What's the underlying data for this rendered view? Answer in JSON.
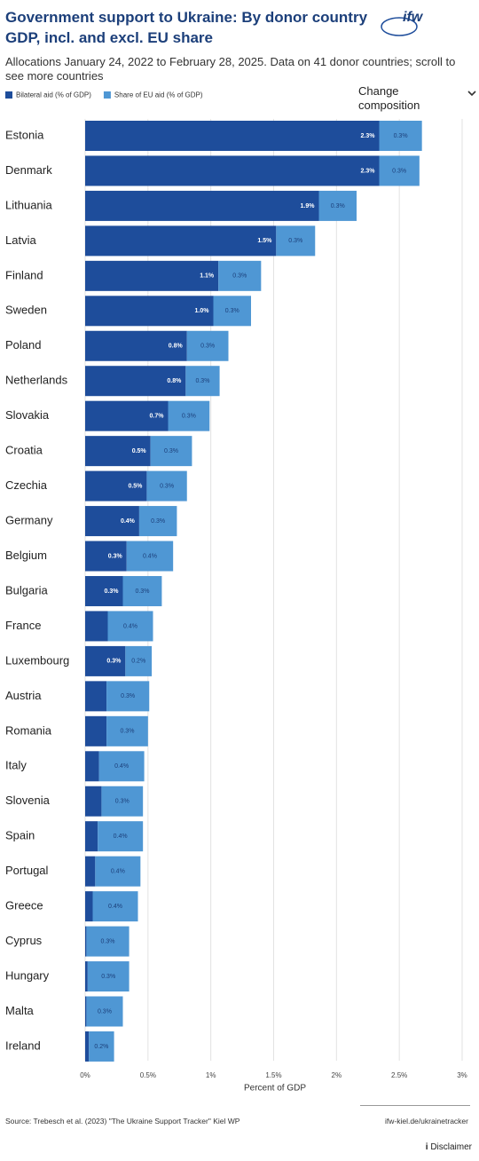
{
  "logo": "ifw",
  "controls": {
    "change_composition": "Change composition"
  },
  "footer": {
    "source": "Source: Trebesch et al. (2023) \"The Ukraine Support Tracker\" Kiel WP",
    "link": "ifw-kiel.de/ukrainetracker",
    "disclaimer": "Disclaimer"
  },
  "chart_data": {
    "type": "stacked-barh",
    "title": "Government support to Ukraine: By donor country GDP, incl. and excl. EU share",
    "subtitle": "Allocations January 24, 2022 to February 28, 2025. Data on 41 donor countries; scroll to see more countries",
    "xlabel": "Percent of GDP",
    "categories": [
      "Estonia",
      "Denmark",
      "Lithuania",
      "Latvia",
      "Finland",
      "Sweden",
      "Poland",
      "Netherlands",
      "Slovakia",
      "Croatia",
      "Czechia",
      "Germany",
      "Belgium",
      "Bulgaria",
      "France",
      "Luxembourg",
      "Austria",
      "Romania",
      "Italy",
      "Slovenia",
      "Spain",
      "Portugal",
      "Greece",
      "Cyprus",
      "Hungary",
      "Malta",
      "Ireland"
    ],
    "series": [
      {
        "name": "Bilateral aid (% of GDP)",
        "color": "#1e4d9b",
        "values": [
          2.34,
          2.34,
          1.86,
          1.52,
          1.06,
          1.02,
          0.81,
          0.8,
          0.66,
          0.52,
          0.49,
          0.43,
          0.33,
          0.3,
          0.18,
          0.32,
          0.17,
          0.17,
          0.11,
          0.13,
          0.1,
          0.08,
          0.06,
          0.01,
          0.02,
          0.01,
          0.03
        ],
        "value_labels": [
          "2.3%",
          "2.3%",
          "1.9%",
          "1.5%",
          "1.1%",
          "1.0%",
          "0.8%",
          "0.8%",
          "0.7%",
          "0.5%",
          "0.5%",
          "0.4%",
          "0.3%",
          "0.3%",
          null,
          "0.3%",
          null,
          null,
          null,
          null,
          null,
          null,
          null,
          null,
          null,
          null,
          null
        ]
      },
      {
        "name": "Share of EU aid (% of GDP)",
        "color": "#4f97d4",
        "values": [
          0.34,
          0.32,
          0.3,
          0.31,
          0.34,
          0.3,
          0.33,
          0.27,
          0.33,
          0.33,
          0.32,
          0.3,
          0.37,
          0.31,
          0.36,
          0.21,
          0.34,
          0.33,
          0.36,
          0.33,
          0.36,
          0.36,
          0.36,
          0.34,
          0.33,
          0.29,
          0.2
        ],
        "value_labels": [
          "0.3%",
          "0.3%",
          "0.3%",
          "0.3%",
          "0.3%",
          "0.3%",
          "0.3%",
          "0.3%",
          "0.3%",
          "0.3%",
          "0.3%",
          "0.3%",
          "0.4%",
          "0.3%",
          "0.4%",
          "0.2%",
          "0.3%",
          "0.3%",
          "0.4%",
          "0.3%",
          "0.4%",
          "0.4%",
          "0.4%",
          "0.3%",
          "0.3%",
          "0.3%",
          "0.2%"
        ]
      }
    ],
    "xlim": [
      0,
      3
    ],
    "xticks": [
      {
        "value": 0,
        "label": "0%"
      },
      {
        "value": 0.5,
        "label": "0.5%"
      },
      {
        "value": 1,
        "label": "1%"
      },
      {
        "value": 1.5,
        "label": "1.5%"
      },
      {
        "value": 2,
        "label": "2%"
      },
      {
        "value": 2.5,
        "label": "2.5%"
      },
      {
        "value": 3,
        "label": "3%"
      }
    ],
    "grid": true,
    "legend": "top-left"
  }
}
